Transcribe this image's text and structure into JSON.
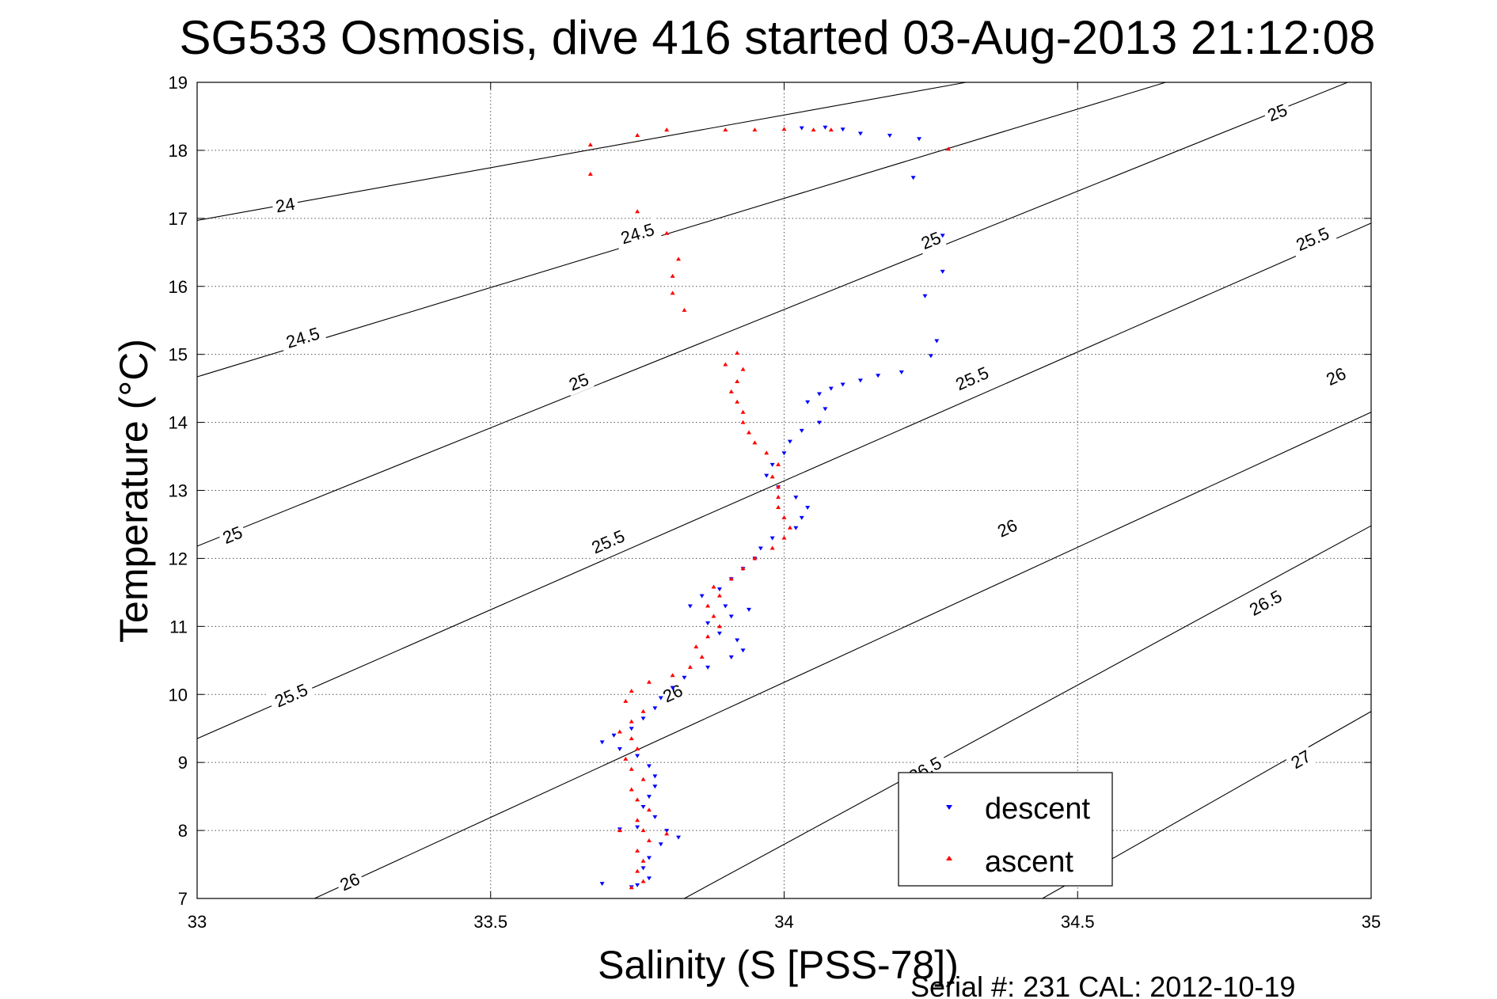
{
  "chart_data": {
    "type": "scatter",
    "title": "SG533 Osmosis, dive 416 started 03-Aug-2013 21:12:08",
    "xlabel": "Salinity (S [PSS-78])",
    "ylabel": "Temperature (°C)",
    "xlim": [
      33,
      35
    ],
    "ylim": [
      7,
      19
    ],
    "xticks": [
      33,
      33.5,
      34,
      34.5,
      35
    ],
    "xtick_labels": [
      "33",
      "33.5",
      "34",
      "34.5",
      "35"
    ],
    "yticks": [
      7,
      8,
      9,
      10,
      11,
      12,
      13,
      14,
      15,
      16,
      17,
      18,
      19
    ],
    "ytick_labels": [
      "7",
      "8",
      "9",
      "10",
      "11",
      "12",
      "13",
      "14",
      "15",
      "16",
      "17",
      "18",
      "19"
    ],
    "grid": true,
    "legend_position": "bottom-right",
    "density_contours": [
      {
        "level": "24",
        "points": [
          [
            33.0,
            16.97
          ],
          [
            34.31,
            19.0
          ]
        ],
        "labels": [
          [
            33.15,
            17.2
          ]
        ]
      },
      {
        "level": "24.5",
        "points": [
          [
            33.0,
            14.67
          ],
          [
            34.65,
            19.0
          ]
        ],
        "labels": [
          [
            33.18,
            15.25
          ],
          [
            33.75,
            16.78
          ]
        ]
      },
      {
        "level": "25",
        "points": [
          [
            33.0,
            12.18
          ],
          [
            34.96,
            19.0
          ]
        ],
        "labels": [
          [
            33.06,
            12.35
          ],
          [
            33.65,
            14.6
          ],
          [
            34.25,
            16.68
          ],
          [
            34.84,
            18.56
          ]
        ]
      },
      {
        "level": "25.5",
        "points": [
          [
            33.0,
            9.35
          ],
          [
            35.0,
            16.93
          ]
        ],
        "labels": [
          [
            33.16,
            9.99
          ],
          [
            33.7,
            12.25
          ],
          [
            34.32,
            14.65
          ],
          [
            34.9,
            16.7
          ]
        ]
      },
      {
        "level": "26",
        "points": [
          [
            33.2,
            7.0
          ],
          [
            35.0,
            14.15
          ]
        ],
        "labels": [
          [
            33.26,
            7.25
          ],
          [
            33.81,
            10.02
          ],
          [
            34.38,
            12.45
          ],
          [
            34.94,
            14.68
          ]
        ]
      },
      {
        "level": "26.5",
        "points": [
          [
            33.83,
            7.0
          ],
          [
            35.0,
            12.48
          ]
        ],
        "labels": [
          [
            34.24,
            8.9
          ],
          [
            34.82,
            11.35
          ]
        ]
      },
      {
        "level": "27",
        "points": [
          [
            34.44,
            7.0
          ],
          [
            35.0,
            9.75
          ]
        ],
        "labels": [
          [
            34.88,
            9.05
          ]
        ]
      }
    ],
    "series": [
      {
        "name": "descent",
        "color": "#0000ff",
        "marker": "down-triangle",
        "points": [
          [
            34.03,
            18.33
          ],
          [
            34.07,
            18.34
          ],
          [
            34.1,
            18.31
          ],
          [
            34.13,
            18.25
          ],
          [
            34.18,
            18.22
          ],
          [
            34.23,
            18.17
          ],
          [
            34.22,
            17.6
          ],
          [
            34.27,
            16.75
          ],
          [
            34.27,
            16.22
          ],
          [
            34.24,
            15.86
          ],
          [
            34.26,
            15.2
          ],
          [
            34.25,
            14.98
          ],
          [
            34.2,
            14.74
          ],
          [
            34.16,
            14.69
          ],
          [
            34.13,
            14.62
          ],
          [
            34.1,
            14.56
          ],
          [
            34.08,
            14.5
          ],
          [
            34.06,
            14.42
          ],
          [
            34.04,
            14.3
          ],
          [
            34.07,
            14.2
          ],
          [
            34.06,
            14.0
          ],
          [
            34.03,
            13.88
          ],
          [
            34.01,
            13.72
          ],
          [
            34.0,
            13.55
          ],
          [
            33.98,
            13.38
          ],
          [
            33.97,
            13.22
          ],
          [
            33.99,
            13.05
          ],
          [
            34.02,
            12.9
          ],
          [
            34.04,
            12.75
          ],
          [
            34.03,
            12.6
          ],
          [
            34.02,
            12.45
          ],
          [
            33.98,
            12.3
          ],
          [
            33.96,
            12.15
          ],
          [
            33.95,
            12.0
          ],
          [
            33.93,
            11.85
          ],
          [
            33.91,
            11.7
          ],
          [
            33.89,
            11.55
          ],
          [
            33.86,
            11.45
          ],
          [
            33.84,
            11.3
          ],
          [
            33.9,
            11.3
          ],
          [
            33.94,
            11.25
          ],
          [
            33.91,
            11.15
          ],
          [
            33.87,
            11.05
          ],
          [
            33.89,
            10.9
          ],
          [
            33.92,
            10.8
          ],
          [
            33.93,
            10.65
          ],
          [
            33.91,
            10.55
          ],
          [
            33.87,
            10.4
          ],
          [
            33.83,
            10.25
          ],
          [
            33.81,
            10.1
          ],
          [
            33.79,
            9.95
          ],
          [
            33.78,
            9.8
          ],
          [
            33.76,
            9.65
          ],
          [
            33.74,
            9.5
          ],
          [
            33.71,
            9.4
          ],
          [
            33.69,
            9.3
          ],
          [
            33.72,
            9.2
          ],
          [
            33.75,
            9.1
          ],
          [
            33.77,
            8.95
          ],
          [
            33.78,
            8.8
          ],
          [
            33.78,
            8.65
          ],
          [
            33.77,
            8.5
          ],
          [
            33.76,
            8.35
          ],
          [
            33.78,
            8.2
          ],
          [
            33.75,
            8.05
          ],
          [
            33.72,
            8.02
          ],
          [
            33.8,
            8.0
          ],
          [
            33.82,
            7.9
          ],
          [
            33.79,
            7.8
          ],
          [
            33.77,
            7.6
          ],
          [
            33.76,
            7.45
          ],
          [
            33.77,
            7.3
          ],
          [
            33.75,
            7.2
          ],
          [
            33.69,
            7.22
          ],
          [
            33.74,
            7.17
          ]
        ]
      },
      {
        "name": "ascent",
        "color": "#ff0000",
        "marker": "up-triangle",
        "points": [
          [
            33.74,
            7.16
          ],
          [
            33.76,
            7.25
          ],
          [
            33.75,
            7.4
          ],
          [
            33.76,
            7.55
          ],
          [
            33.75,
            7.7
          ],
          [
            33.77,
            7.85
          ],
          [
            33.8,
            7.95
          ],
          [
            33.76,
            8.0
          ],
          [
            33.72,
            8.0
          ],
          [
            33.75,
            8.15
          ],
          [
            33.77,
            8.3
          ],
          [
            33.75,
            8.45
          ],
          [
            33.74,
            8.6
          ],
          [
            33.76,
            8.75
          ],
          [
            33.74,
            8.9
          ],
          [
            33.73,
            9.05
          ],
          [
            33.75,
            9.2
          ],
          [
            33.74,
            9.35
          ],
          [
            33.72,
            9.45
          ],
          [
            33.74,
            9.6
          ],
          [
            33.76,
            9.75
          ],
          [
            33.73,
            9.9
          ],
          [
            33.74,
            10.05
          ],
          [
            33.77,
            10.18
          ],
          [
            33.81,
            10.28
          ],
          [
            33.84,
            10.4
          ],
          [
            33.86,
            10.55
          ],
          [
            33.85,
            10.7
          ],
          [
            33.87,
            10.85
          ],
          [
            33.89,
            11.0
          ],
          [
            33.88,
            11.15
          ],
          [
            33.87,
            11.3
          ],
          [
            33.89,
            11.45
          ],
          [
            33.88,
            11.58
          ],
          [
            33.91,
            11.7
          ],
          [
            33.93,
            11.85
          ],
          [
            33.95,
            12.0
          ],
          [
            33.98,
            12.15
          ],
          [
            34.0,
            12.3
          ],
          [
            34.01,
            12.45
          ],
          [
            34.0,
            12.6
          ],
          [
            33.99,
            12.75
          ],
          [
            33.99,
            12.9
          ],
          [
            33.99,
            13.05
          ],
          [
            33.98,
            13.2
          ],
          [
            33.99,
            13.38
          ],
          [
            33.97,
            13.55
          ],
          [
            33.95,
            13.7
          ],
          [
            33.94,
            13.85
          ],
          [
            33.93,
            14.0
          ],
          [
            33.93,
            14.15
          ],
          [
            33.92,
            14.3
          ],
          [
            33.91,
            14.45
          ],
          [
            33.92,
            14.6
          ],
          [
            33.93,
            14.78
          ],
          [
            33.9,
            14.85
          ],
          [
            33.92,
            15.02
          ],
          [
            33.83,
            15.65
          ],
          [
            33.81,
            15.9
          ],
          [
            33.81,
            16.15
          ],
          [
            33.82,
            16.4
          ],
          [
            33.8,
            16.78
          ],
          [
            33.75,
            17.1
          ],
          [
            33.67,
            17.65
          ],
          [
            33.67,
            18.08
          ],
          [
            33.75,
            18.22
          ],
          [
            33.8,
            18.3
          ],
          [
            33.9,
            18.3
          ],
          [
            33.95,
            18.3
          ],
          [
            34.0,
            18.31
          ],
          [
            34.05,
            18.3
          ],
          [
            34.08,
            18.3
          ],
          [
            34.28,
            18.02
          ]
        ]
      }
    ],
    "legend": [
      "descent",
      "ascent"
    ]
  },
  "footer": {
    "serial_label": "Serial #:",
    "serial_value": "231",
    "cal_label": "CAL:",
    "cal_value": "2012-10-19"
  }
}
